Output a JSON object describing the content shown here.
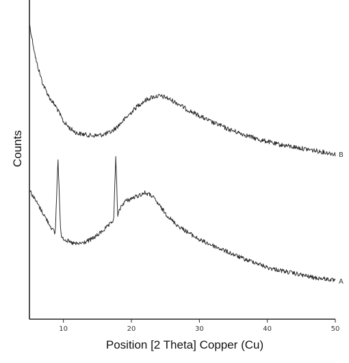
{
  "chart_data": {
    "type": "line",
    "xlabel": "Position [2 Theta] Copper (Cu)",
    "ylabel": "Counts",
    "xlim": [
      5,
      50
    ],
    "xticks": [
      10,
      20,
      30,
      40,
      50
    ],
    "grid": false,
    "line_color": "#2a2a2a",
    "series": [
      {
        "name": "B",
        "x": [
          5,
          6,
          7,
          8,
          9,
          10,
          11,
          12,
          13,
          14,
          15,
          16,
          17,
          18,
          19,
          20,
          21,
          22,
          23,
          24,
          25,
          26,
          27,
          28,
          29,
          30,
          31,
          32,
          33,
          34,
          35,
          36,
          37,
          38,
          39,
          40,
          41,
          42,
          43,
          44,
          45,
          46,
          47,
          48,
          49,
          50
        ],
        "y": [
          0.98,
          0.82,
          0.72,
          0.66,
          0.62,
          0.56,
          0.53,
          0.51,
          0.505,
          0.5,
          0.5,
          0.505,
          0.515,
          0.54,
          0.57,
          0.6,
          0.63,
          0.65,
          0.665,
          0.67,
          0.665,
          0.65,
          0.635,
          0.615,
          0.6,
          0.585,
          0.57,
          0.555,
          0.545,
          0.53,
          0.52,
          0.51,
          0.5,
          0.49,
          0.48,
          0.475,
          0.465,
          0.46,
          0.455,
          0.45,
          0.445,
          0.44,
          0.435,
          0.43,
          0.425,
          0.42
        ]
      },
      {
        "name": "A",
        "x": [
          5,
          6,
          7,
          8,
          8.8,
          9.2,
          9.6,
          10,
          11,
          12,
          13,
          14,
          15,
          16,
          17,
          17.4,
          17.7,
          18.0,
          18.4,
          19,
          20,
          21,
          22,
          23,
          24,
          25,
          26,
          27,
          28,
          29,
          30,
          31,
          32,
          33,
          34,
          35,
          36,
          37,
          38,
          39,
          40,
          41,
          42,
          43,
          44,
          45,
          46,
          47,
          48,
          49,
          50
        ],
        "y": [
          0.45,
          0.41,
          0.37,
          0.33,
          0.3,
          0.56,
          0.3,
          0.285,
          0.27,
          0.265,
          0.27,
          0.28,
          0.295,
          0.315,
          0.335,
          0.35,
          0.56,
          0.36,
          0.39,
          0.41,
          0.42,
          0.43,
          0.44,
          0.43,
          0.4,
          0.37,
          0.345,
          0.325,
          0.31,
          0.295,
          0.28,
          0.27,
          0.26,
          0.25,
          0.24,
          0.23,
          0.22,
          0.21,
          0.205,
          0.195,
          0.185,
          0.18,
          0.175,
          0.17,
          0.165,
          0.16,
          0.155,
          0.15,
          0.148,
          0.145,
          0.14
        ]
      }
    ]
  }
}
